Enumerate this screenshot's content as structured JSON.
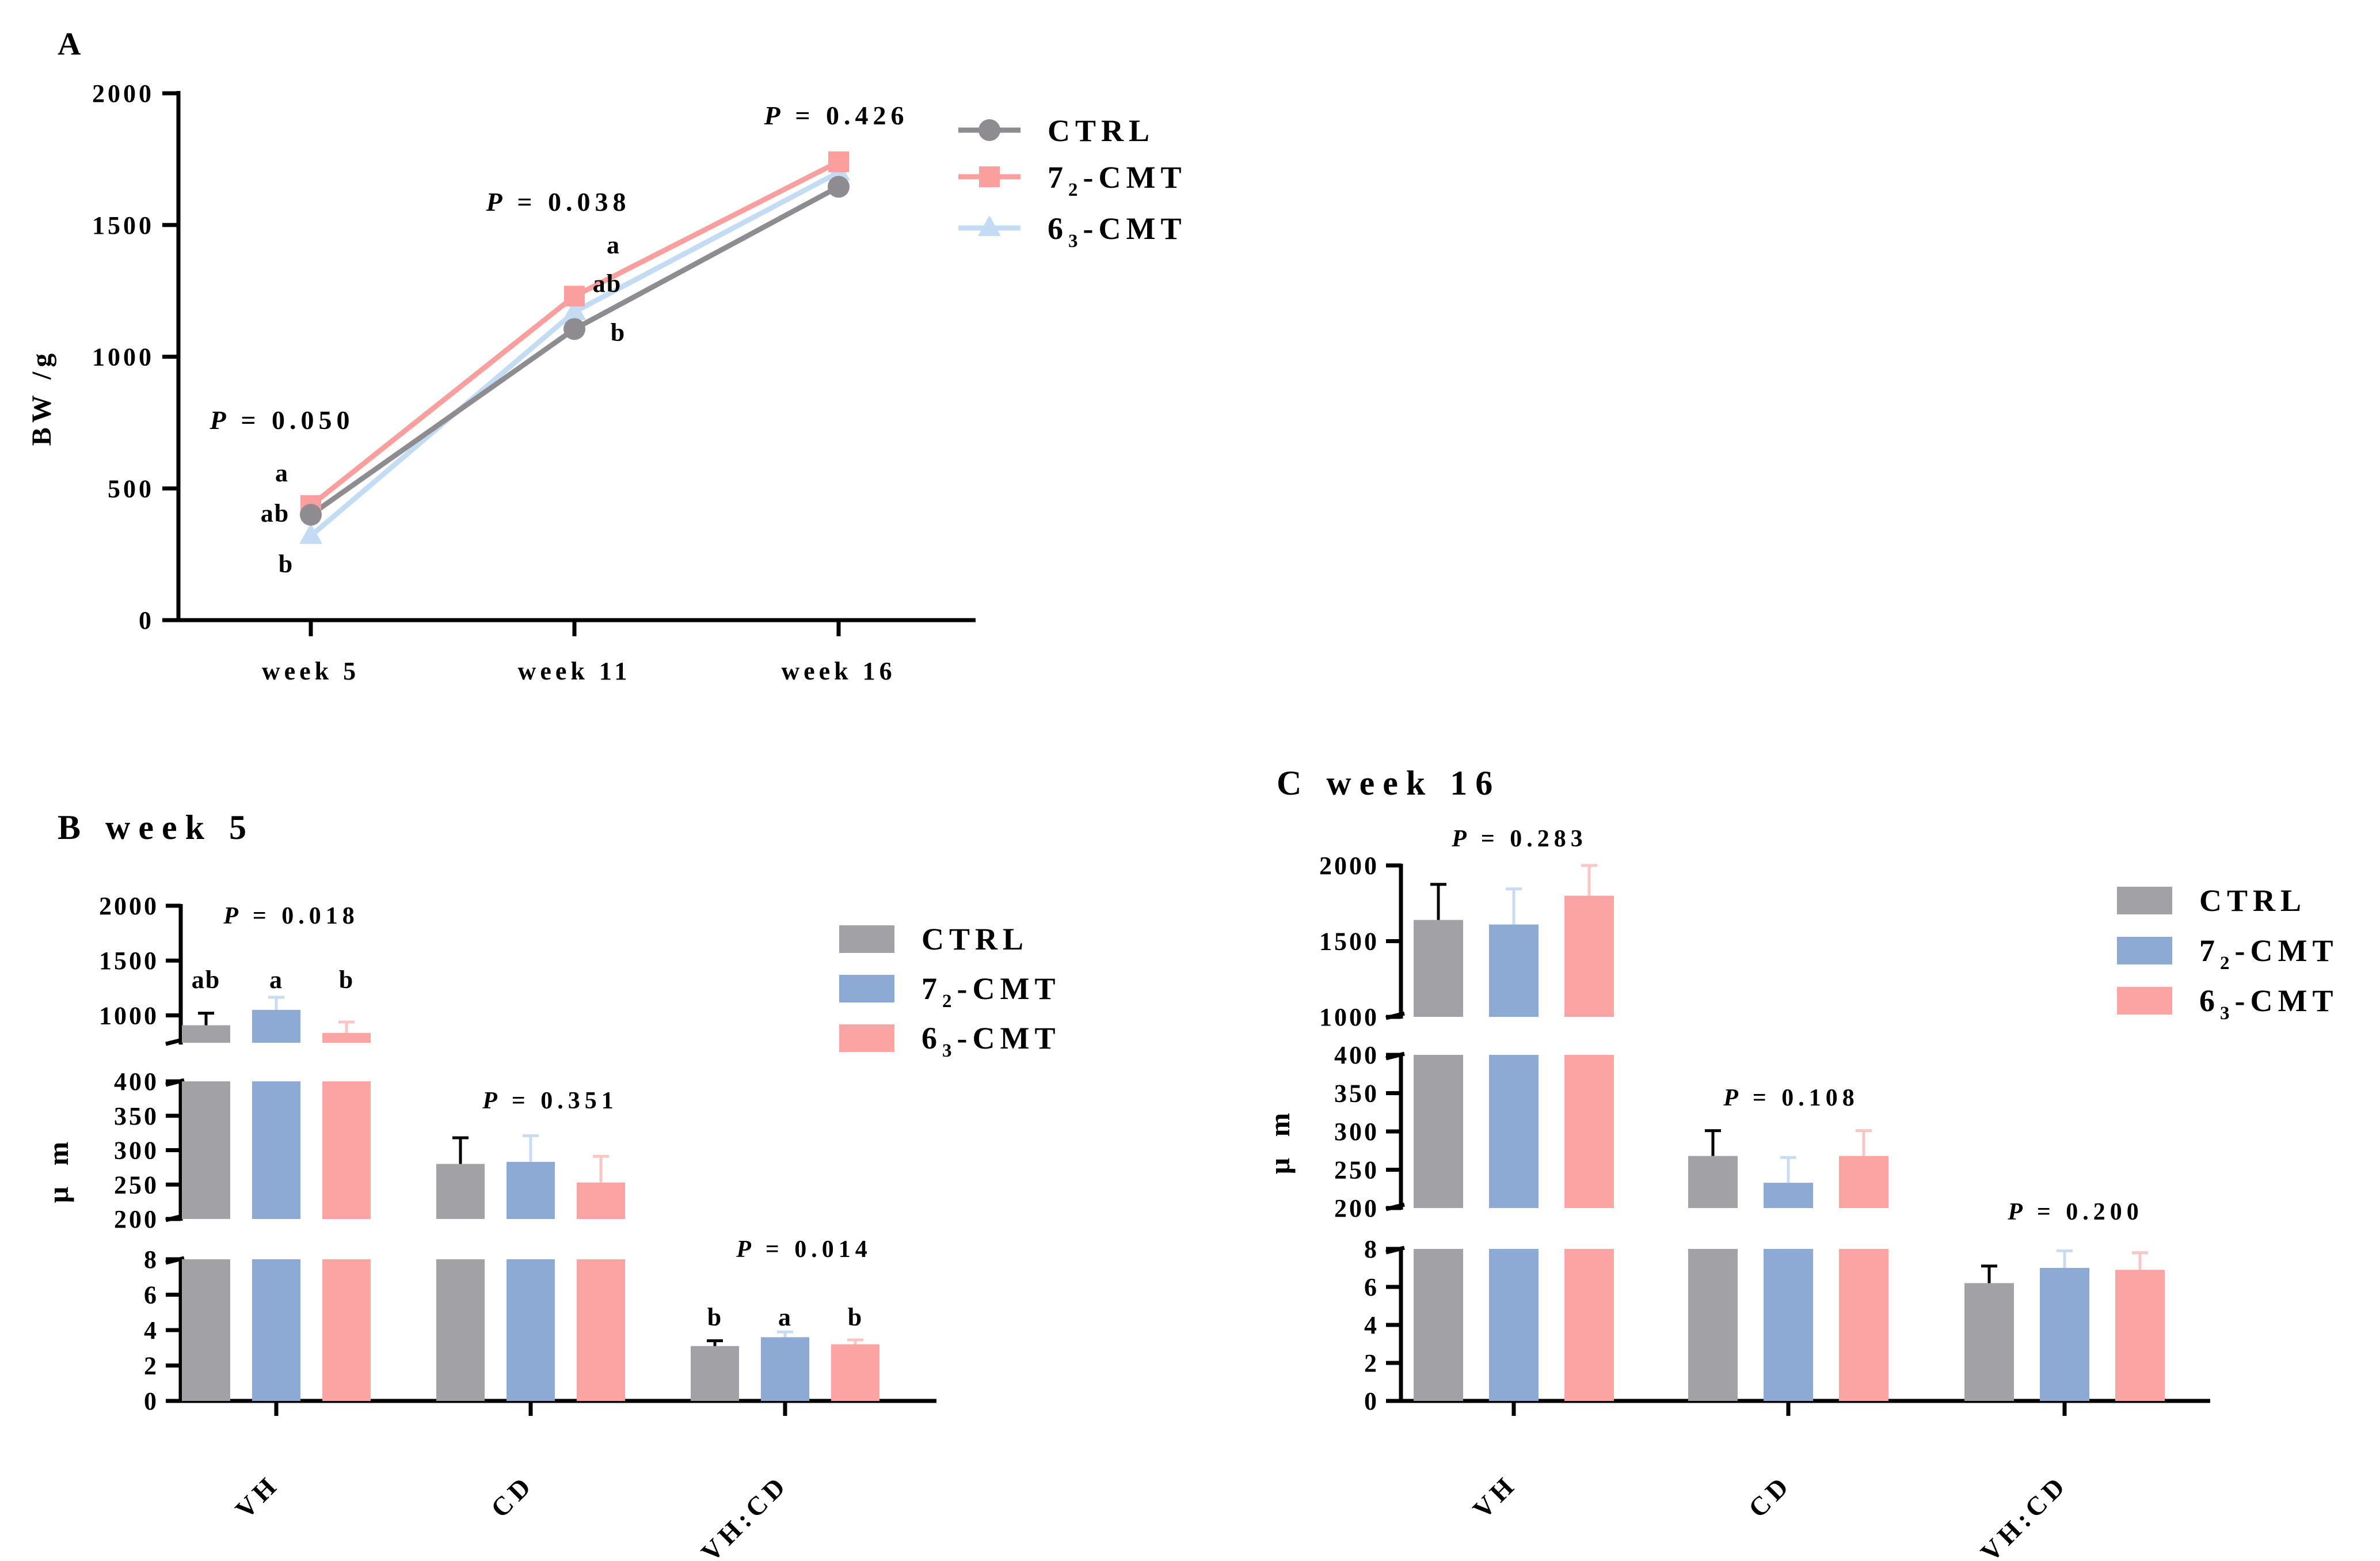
{
  "colors": {
    "ctrl": "#8E8C90",
    "cmt72": "#FA9F9E",
    "cmt63": "#C3DCF3",
    "bar_ctrl": "#A2A1A5",
    "bar_72": "#8CAAD4",
    "bar_63": "#FCA3A3",
    "err_72": "#C8DBF2",
    "err_63": "#FAC5C5",
    "axis": "#000000"
  },
  "chart_data": [
    {
      "id": "A",
      "type": "line",
      "panel_label": "A",
      "title": "",
      "ylabel": "BW /g",
      "xlabel": "",
      "categories": [
        "week 5",
        "week 11",
        "week 16"
      ],
      "ylim": [
        0,
        2000
      ],
      "yticks": [
        "0",
        "500",
        "1000",
        "1500",
        "2000"
      ],
      "series": [
        {
          "name": "CTRL",
          "sub": "",
          "values": [
            400,
            1105,
            1645
          ],
          "marker": "circle",
          "color_key": "ctrl"
        },
        {
          "name": "7",
          "sub": "2",
          "suffix": "-CMT",
          "values": [
            435,
            1230,
            1740
          ],
          "marker": "square",
          "color_key": "cmt72"
        },
        {
          "name": "6",
          "sub": "3",
          "suffix": "-CMT",
          "values": [
            320,
            1170,
            1700
          ],
          "marker": "triangle",
          "color_key": "cmt63"
        }
      ],
      "legend_labels": [
        {
          "main": "CTRL",
          "sub": "",
          "suffix": ""
        },
        {
          "main": "7",
          "sub": "2",
          "suffix": "-CMT"
        },
        {
          "main": "6",
          "sub": "3",
          "suffix": "-CMT"
        }
      ],
      "p_values": [
        "= 0.050",
        "= 0.038",
        "= 0.426"
      ],
      "p_symbol": "P",
      "letters": [
        {
          "category": "week 5",
          "labels": [
            "a",
            "ab",
            "b"
          ]
        },
        {
          "category": "week 11",
          "labels": [
            "a",
            "ab",
            "b"
          ]
        }
      ]
    },
    {
      "id": "B",
      "type": "bar",
      "panel_label": "B  week 5",
      "ylabel": "μ m",
      "categories": [
        "VH",
        "CD",
        "VH:CD"
      ],
      "series": [
        {
          "name": "CTRL",
          "values": [
            910,
            280,
            3.1
          ],
          "errors": [
            110,
            38,
            0.3
          ]
        },
        {
          "name": "72-CMT",
          "values": [
            1050,
            283,
            3.6
          ],
          "errors": [
            115,
            38,
            0.3
          ]
        },
        {
          "name": "63-CMT",
          "values": [
            840,
            253,
            3.2
          ],
          "errors": [
            100,
            38,
            0.25
          ]
        }
      ],
      "segments": [
        {
          "range": [
            0,
            8
          ],
          "ticks": [
            "0",
            "2",
            "4",
            "6",
            "8"
          ]
        },
        {
          "range": [
            200,
            400
          ],
          "ticks": [
            "200",
            "250",
            "300",
            "350",
            "400"
          ]
        },
        {
          "range": [
            750,
            2000
          ],
          "ticks": [
            "1000",
            "1500",
            "2000"
          ]
        }
      ],
      "p_values": [
        "= 0.018",
        "= 0.351",
        "= 0.014"
      ],
      "p_symbol": "P",
      "letters": [
        {
          "category": "VH",
          "labels": [
            "ab",
            "a",
            "b"
          ]
        },
        {
          "category": "VH:CD",
          "labels": [
            "b",
            "a",
            "b"
          ]
        }
      ],
      "legend_labels": [
        {
          "main": "CTRL",
          "sub": "",
          "suffix": ""
        },
        {
          "main": "7",
          "sub": "2",
          "suffix": "-CMT"
        },
        {
          "main": "6",
          "sub": "3",
          "suffix": "-CMT"
        }
      ]
    },
    {
      "id": "C",
      "type": "bar",
      "panel_label": "C  week 16",
      "ylabel": "μ m",
      "categories": [
        "VH",
        "CD",
        "VH:CD"
      ],
      "series": [
        {
          "name": "CTRL",
          "values": [
            1640,
            268,
            6.2
          ],
          "errors": [
            235,
            33,
            0.9
          ]
        },
        {
          "name": "72-CMT",
          "values": [
            1610,
            233,
            7.0
          ],
          "errors": [
            235,
            33,
            0.9
          ]
        },
        {
          "name": "63-CMT",
          "values": [
            1800,
            268,
            6.9
          ],
          "errors": [
            245,
            33,
            0.9
          ]
        }
      ],
      "segments": [
        {
          "range": [
            0,
            8
          ],
          "ticks": [
            "0",
            "2",
            "4",
            "6",
            "8"
          ]
        },
        {
          "range": [
            200,
            400
          ],
          "ticks": [
            "200",
            "250",
            "300",
            "350",
            "400"
          ]
        },
        {
          "range": [
            1000,
            2000
          ],
          "ticks": [
            "1000",
            "1500",
            "2000"
          ]
        }
      ],
      "p_values": [
        "= 0.283",
        "= 0.108",
        "= 0.200"
      ],
      "p_symbol": "P",
      "letters": [],
      "legend_labels": [
        {
          "main": "CTRL",
          "sub": "",
          "suffix": ""
        },
        {
          "main": "7",
          "sub": "2",
          "suffix": "-CMT"
        },
        {
          "main": "6",
          "sub": "3",
          "suffix": "-CMT"
        }
      ]
    }
  ]
}
